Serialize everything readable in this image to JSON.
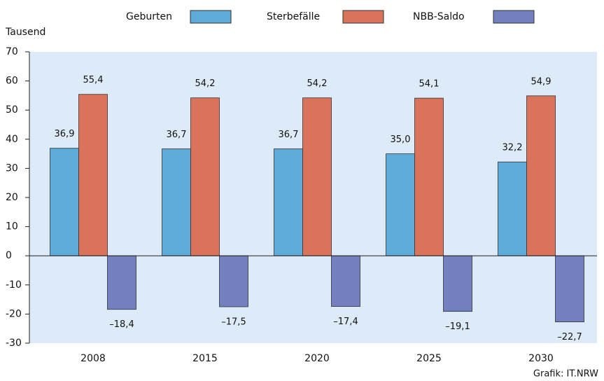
{
  "chart_data": {
    "type": "bar",
    "y_label": "Tausend",
    "source": "Grafik: IT.NRW",
    "categories": [
      "2008",
      "2015",
      "2020",
      "2025",
      "2030"
    ],
    "series": [
      {
        "name": "Geburten",
        "color": "#5eaad8",
        "values": [
          36.9,
          36.7,
          36.7,
          35.0,
          32.2
        ],
        "value_labels": [
          "36,9",
          "36,7",
          "36,7",
          "35,0",
          "32,2"
        ]
      },
      {
        "name": "Sterbefälle",
        "color": "#d9745a",
        "values": [
          55.4,
          54.2,
          54.2,
          54.1,
          54.9
        ],
        "value_labels": [
          "55,4",
          "54,2",
          "54,2",
          "54,1",
          "54,9"
        ]
      },
      {
        "name": "NBB-Saldo",
        "color": "#7280c0",
        "values": [
          -18.4,
          -17.5,
          -17.4,
          -19.1,
          -22.7
        ],
        "value_labels": [
          "–18,4",
          "–17,5",
          "–17,4",
          "–19,1",
          "–22,7"
        ]
      }
    ],
    "ylim": [
      -30,
      70
    ],
    "yticks": [
      -30,
      -20,
      -10,
      0,
      10,
      20,
      30,
      40,
      50,
      60,
      70
    ],
    "legend": "top"
  }
}
